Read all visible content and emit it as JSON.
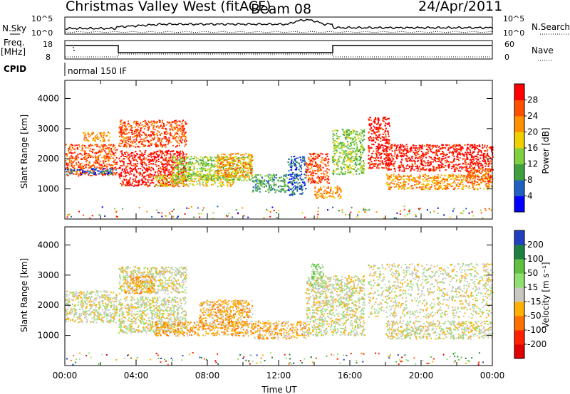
{
  "header": {
    "radar": "Christmas Valley West (fitACF)",
    "beam": "Beam 08",
    "date": "24/Apr/2011"
  },
  "top_panels": {
    "nsky_label": "N.Sky",
    "nsky_ticks": [
      "10^5",
      "10^0"
    ],
    "nsearch_label": "N.Search",
    "nsearch_ticks": [
      "10^5",
      "10^0"
    ],
    "freq_label": "Freq.",
    "freq_unit": "[MHz]",
    "freq_ticks": [
      "18",
      "8"
    ],
    "nave_label": "Nave",
    "nave_ticks": [
      "60",
      "0"
    ],
    "cpid_label": "CPID",
    "cpid_text": "normal 150 IF"
  },
  "chart_data": [
    {
      "type": "heatmap",
      "name": "power",
      "ylabel": "Slant Range [km]",
      "xlabel": "Time UT",
      "ylim": [
        0,
        4600
      ],
      "xlim_hours": [
        0,
        24
      ],
      "y_ticks": [
        "1000",
        "2000",
        "3000",
        "4000"
      ],
      "colorbar_label": "Power [dB]",
      "colorbar_ticks": [
        "4",
        "8",
        "12",
        "16",
        "20",
        "24",
        "28"
      ],
      "colorscale": [
        "#0000ff",
        "#2060c0",
        "#40a040",
        "#80d040",
        "#f0d000",
        "#ff9000",
        "#ff5000",
        "#ff0000"
      ],
      "scatter_bands": [
        {
          "t0": 0.0,
          "t1": 2.9,
          "r0": 1450,
          "r1": 2500,
          "level": 6
        },
        {
          "t0": 0.0,
          "t1": 2.9,
          "r0": 1500,
          "r1": 1700,
          "level": 1
        },
        {
          "t0": 1.0,
          "t1": 2.5,
          "r0": 2600,
          "r1": 2900,
          "level": 5
        },
        {
          "t0": 3.0,
          "t1": 6.8,
          "r0": 1100,
          "r1": 2300,
          "level": 7
        },
        {
          "t0": 3.0,
          "t1": 6.8,
          "r0": 2400,
          "r1": 3300,
          "level": 6
        },
        {
          "t0": 5.0,
          "t1": 9.5,
          "r0": 1100,
          "r1": 1500,
          "level": 4
        },
        {
          "t0": 6.0,
          "t1": 10.5,
          "r0": 1300,
          "r1": 2100,
          "level": 3
        },
        {
          "t0": 8.5,
          "t1": 10.5,
          "r0": 1400,
          "r1": 2200,
          "level": 5
        },
        {
          "t0": 10.5,
          "t1": 12.5,
          "r0": 900,
          "r1": 1500,
          "level": 2
        },
        {
          "t0": 12.5,
          "t1": 13.5,
          "r0": 800,
          "r1": 2100,
          "level": 1
        },
        {
          "t0": 13.5,
          "t1": 14.8,
          "r0": 1200,
          "r1": 2200,
          "level": 6
        },
        {
          "t0": 14.0,
          "t1": 15.5,
          "r0": 700,
          "r1": 1100,
          "level": 5
        },
        {
          "t0": 15.0,
          "t1": 16.8,
          "r0": 1500,
          "r1": 3000,
          "level": 3
        },
        {
          "t0": 17.0,
          "t1": 18.2,
          "r0": 1700,
          "r1": 3400,
          "level": 7
        },
        {
          "t0": 18.0,
          "t1": 24.0,
          "r0": 1600,
          "r1": 2500,
          "level": 7
        },
        {
          "t0": 18.0,
          "t1": 24.0,
          "r0": 1000,
          "r1": 1500,
          "level": 5
        },
        {
          "t0": 22.5,
          "t1": 24.0,
          "r0": 1200,
          "r1": 1700,
          "level": 6
        }
      ]
    },
    {
      "type": "heatmap",
      "name": "velocity",
      "ylabel": "Slant Range [km]",
      "xlabel": "Time UT",
      "ylim": [
        0,
        4600
      ],
      "xlim_hours": [
        0,
        24
      ],
      "y_ticks": [
        "1000",
        "2000",
        "3000",
        "4000"
      ],
      "x_ticks": [
        "00:00",
        "04:00",
        "08:00",
        "12:00",
        "16:00",
        "20:00",
        "00:00"
      ],
      "colorbar_label": "Velocity [m s⁻¹]",
      "colorbar_ticks": [
        "200",
        "100",
        "50",
        "15",
        "-15",
        "-50",
        "-100",
        "-200"
      ],
      "colorscale": [
        "#2040c0",
        "#1e8040",
        "#60c040",
        "#90e070",
        "#c8c8c0",
        "#ffb000",
        "#ff7000",
        "#ff2000",
        "#e00000"
      ],
      "scatter_bands": [
        {
          "t0": 0.0,
          "t1": 2.9,
          "r0": 1450,
          "r1": 2500,
          "level": 4
        },
        {
          "t0": 3.0,
          "t1": 6.8,
          "r0": 1100,
          "r1": 2300,
          "level": 4
        },
        {
          "t0": 3.0,
          "t1": 6.8,
          "r0": 2400,
          "r1": 3300,
          "level": 4
        },
        {
          "t0": 3.3,
          "t1": 5.0,
          "r0": 2400,
          "r1": 3000,
          "level": 5
        },
        {
          "t0": 5.0,
          "t1": 10.5,
          "r0": 1000,
          "r1": 1500,
          "level": 5
        },
        {
          "t0": 7.5,
          "t1": 10.5,
          "r0": 1300,
          "r1": 2200,
          "level": 5
        },
        {
          "t0": 10.5,
          "t1": 13.5,
          "r0": 900,
          "r1": 1500,
          "level": 5
        },
        {
          "t0": 13.5,
          "t1": 16.8,
          "r0": 1000,
          "r1": 3000,
          "level": 4
        },
        {
          "t0": 13.8,
          "t1": 14.5,
          "r0": 2600,
          "r1": 3400,
          "level": 3
        },
        {
          "t0": 17.0,
          "t1": 24.0,
          "r0": 1600,
          "r1": 3400,
          "level": 4
        },
        {
          "t0": 18.0,
          "t1": 24.0,
          "r0": 900,
          "r1": 1500,
          "level": 4
        }
      ]
    }
  ]
}
